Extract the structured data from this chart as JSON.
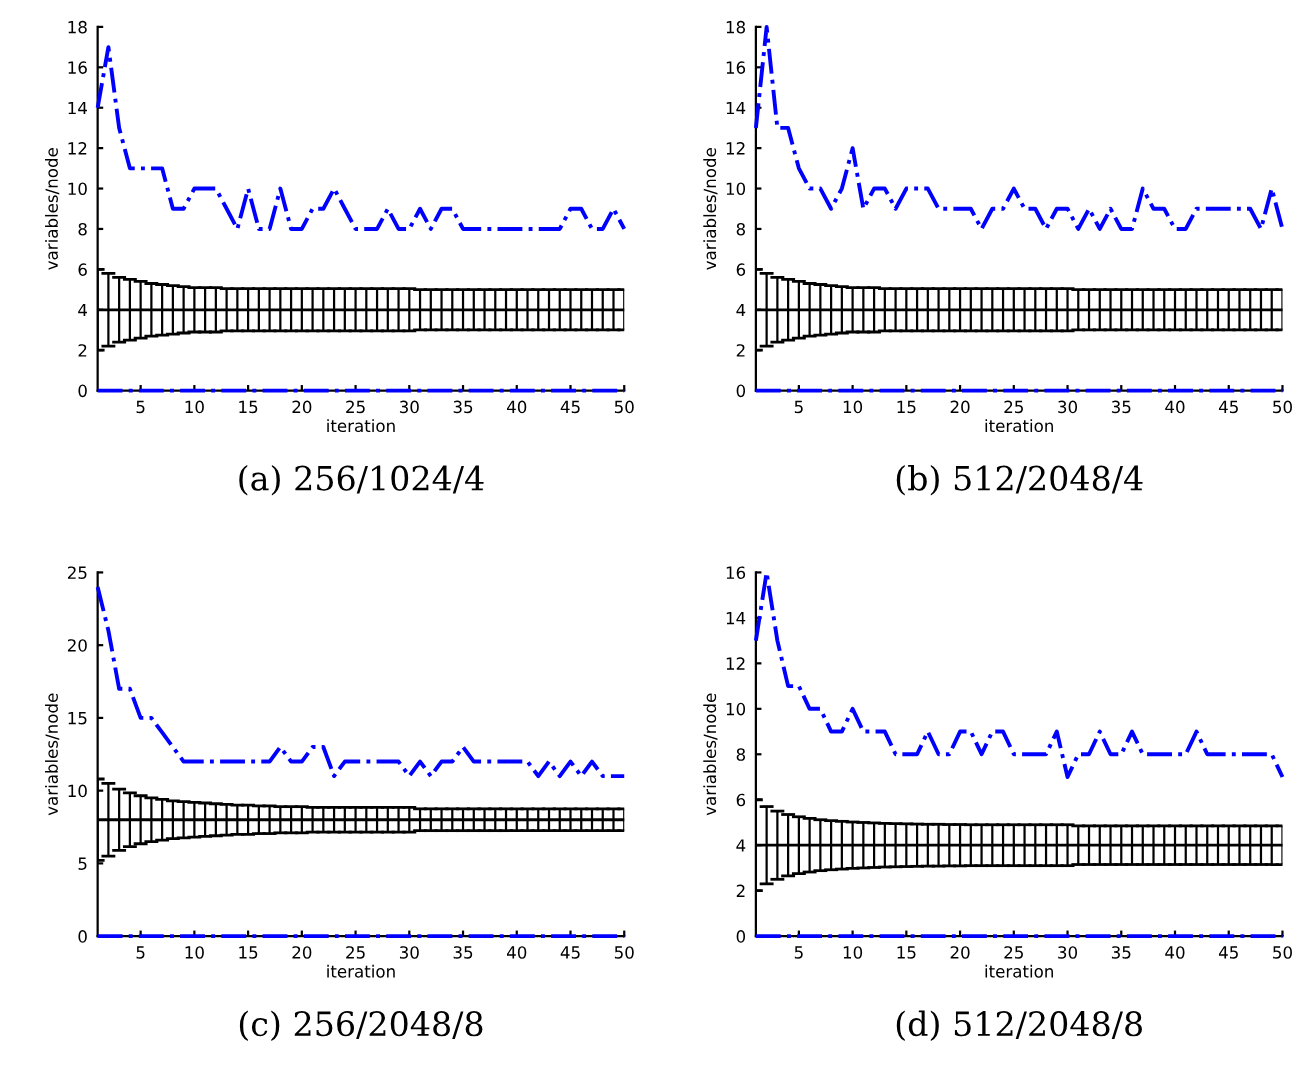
{
  "chart_data": [
    {
      "type": "line",
      "title": "(a) 256/1024/4",
      "xlabel": "iteration",
      "ylabel": "variables/node",
      "xlim": [
        1,
        50
      ],
      "xticks": [
        5,
        10,
        15,
        20,
        25,
        30,
        35,
        40,
        45,
        50
      ],
      "ylim": [
        0,
        18
      ],
      "yticks": [
        0,
        2,
        4,
        6,
        8,
        10,
        12,
        14,
        16,
        18
      ],
      "grid": false,
      "legend": false,
      "x": [
        1,
        2,
        3,
        4,
        5,
        6,
        7,
        8,
        9,
        10,
        11,
        12,
        13,
        14,
        15,
        16,
        17,
        18,
        19,
        20,
        21,
        22,
        23,
        24,
        25,
        26,
        27,
        28,
        29,
        30,
        31,
        32,
        33,
        34,
        35,
        36,
        37,
        38,
        39,
        40,
        41,
        42,
        43,
        44,
        45,
        46,
        47,
        48,
        49,
        50
      ],
      "series": [
        {
          "color": "#0000ff",
          "line_style": "dashed",
          "values": [
            14,
            17,
            13,
            11,
            11,
            11,
            11,
            9,
            9,
            10,
            10,
            10,
            9,
            8,
            10,
            8,
            8,
            10,
            8,
            8,
            9,
            9,
            10,
            9,
            8,
            8,
            8,
            9,
            8,
            8,
            9,
            8,
            9,
            9,
            8,
            8,
            8,
            8,
            8,
            8,
            8,
            8,
            8,
            8,
            9,
            9,
            8,
            8,
            9,
            8
          ]
        },
        {
          "color": "#0000ff",
          "line_style": "dashed",
          "values": [
            0,
            0,
            0,
            0,
            0,
            0,
            0,
            0,
            0,
            0,
            0,
            0,
            0,
            0,
            0,
            0,
            0,
            0,
            0,
            0,
            0,
            0,
            0,
            0,
            0,
            0,
            0,
            0,
            0,
            0,
            0,
            0,
            0,
            0,
            0,
            0,
            0,
            0,
            0,
            0,
            0,
            0,
            0,
            0,
            0,
            0,
            0,
            0,
            0,
            0
          ]
        },
        {
          "color": "#000000",
          "line_style": "solid",
          "values": [
            4,
            4,
            4,
            4,
            4,
            4,
            4,
            4,
            4,
            4,
            4,
            4,
            4,
            4,
            4,
            4,
            4,
            4,
            4,
            4,
            4,
            4,
            4,
            4,
            4,
            4,
            4,
            4,
            4,
            4,
            4,
            4,
            4,
            4,
            4,
            4,
            4,
            4,
            4,
            4,
            4,
            4,
            4,
            4,
            4,
            4,
            4,
            4,
            4,
            4
          ],
          "errors": [
            2,
            1.8,
            1.6,
            1.5,
            1.4,
            1.3,
            1.25,
            1.2,
            1.15,
            1.1,
            1.1,
            1.1,
            1.05,
            1.05,
            1.05,
            1.05,
            1.05,
            1.05,
            1.05,
            1.05,
            1.05,
            1.05,
            1.05,
            1.05,
            1.05,
            1.05,
            1.05,
            1.05,
            1.05,
            1.05,
            1,
            1,
            1,
            1,
            1,
            1,
            1,
            1,
            1,
            1,
            1,
            1,
            1,
            1,
            1,
            1,
            1,
            1,
            1,
            1
          ]
        }
      ]
    },
    {
      "type": "line",
      "title": "(b) 512/2048/4",
      "xlabel": "iteration",
      "ylabel": "variables/node",
      "xlim": [
        1,
        50
      ],
      "xticks": [
        5,
        10,
        15,
        20,
        25,
        30,
        35,
        40,
        45,
        50
      ],
      "ylim": [
        0,
        18
      ],
      "yticks": [
        0,
        2,
        4,
        6,
        8,
        10,
        12,
        14,
        16,
        18
      ],
      "grid": false,
      "legend": false,
      "x": [
        1,
        2,
        3,
        4,
        5,
        6,
        7,
        8,
        9,
        10,
        11,
        12,
        13,
        14,
        15,
        16,
        17,
        18,
        19,
        20,
        21,
        22,
        23,
        24,
        25,
        26,
        27,
        28,
        29,
        30,
        31,
        32,
        33,
        34,
        35,
        36,
        37,
        38,
        39,
        40,
        41,
        42,
        43,
        44,
        45,
        46,
        47,
        48,
        49,
        50
      ],
      "series": [
        {
          "color": "#0000ff",
          "line_style": "dashed",
          "values": [
            13,
            18,
            13,
            13,
            11,
            10,
            10,
            9,
            10,
            12,
            9,
            10,
            10,
            9,
            10,
            10,
            10,
            9,
            9,
            9,
            9,
            8,
            9,
            9,
            10,
            9,
            9,
            8,
            9,
            9,
            8,
            9,
            8,
            9,
            8,
            8,
            10,
            9,
            9,
            8,
            8,
            9,
            9,
            9,
            9,
            9,
            9,
            8,
            10,
            8
          ]
        },
        {
          "color": "#0000ff",
          "line_style": "dashed",
          "values": [
            0,
            0,
            0,
            0,
            0,
            0,
            0,
            0,
            0,
            0,
            0,
            0,
            0,
            0,
            0,
            0,
            0,
            0,
            0,
            0,
            0,
            0,
            0,
            0,
            0,
            0,
            0,
            0,
            0,
            0,
            0,
            0,
            0,
            0,
            0,
            0,
            0,
            0,
            0,
            0,
            0,
            0,
            0,
            0,
            0,
            0,
            0,
            0,
            0,
            0
          ]
        },
        {
          "color": "#000000",
          "line_style": "solid",
          "values": [
            4,
            4,
            4,
            4,
            4,
            4,
            4,
            4,
            4,
            4,
            4,
            4,
            4,
            4,
            4,
            4,
            4,
            4,
            4,
            4,
            4,
            4,
            4,
            4,
            4,
            4,
            4,
            4,
            4,
            4,
            4,
            4,
            4,
            4,
            4,
            4,
            4,
            4,
            4,
            4,
            4,
            4,
            4,
            4,
            4,
            4,
            4,
            4,
            4,
            4
          ],
          "errors": [
            2,
            1.8,
            1.6,
            1.5,
            1.4,
            1.3,
            1.25,
            1.2,
            1.15,
            1.1,
            1.1,
            1.1,
            1.05,
            1.05,
            1.05,
            1.05,
            1.05,
            1.05,
            1.05,
            1.05,
            1.05,
            1.05,
            1.05,
            1.05,
            1.05,
            1.05,
            1.05,
            1.05,
            1.05,
            1.05,
            1,
            1,
            1,
            1,
            1,
            1,
            1,
            1,
            1,
            1,
            1,
            1,
            1,
            1,
            1,
            1,
            1,
            1,
            1,
            1
          ]
        }
      ]
    },
    {
      "type": "line",
      "title": "(c) 256/2048/8",
      "xlabel": "iteration",
      "ylabel": "variables/node",
      "xlim": [
        1,
        50
      ],
      "xticks": [
        5,
        10,
        15,
        20,
        25,
        30,
        35,
        40,
        45,
        50
      ],
      "ylim": [
        0,
        25
      ],
      "yticks": [
        0,
        5,
        10,
        15,
        20,
        25
      ],
      "grid": false,
      "legend": false,
      "x": [
        1,
        2,
        3,
        4,
        5,
        6,
        7,
        8,
        9,
        10,
        11,
        12,
        13,
        14,
        15,
        16,
        17,
        18,
        19,
        20,
        21,
        22,
        23,
        24,
        25,
        26,
        27,
        28,
        29,
        30,
        31,
        32,
        33,
        34,
        35,
        36,
        37,
        38,
        39,
        40,
        41,
        42,
        43,
        44,
        45,
        46,
        47,
        48,
        49,
        50
      ],
      "series": [
        {
          "color": "#0000ff",
          "line_style": "dashed",
          "values": [
            24,
            21,
            17,
            17,
            15,
            15,
            14,
            13,
            12,
            12,
            12,
            12,
            12,
            12,
            12,
            12,
            12,
            13,
            12,
            12,
            13,
            13,
            11,
            12,
            12,
            12,
            12,
            12,
            12,
            11,
            12,
            11,
            12,
            12,
            13,
            12,
            12,
            12,
            12,
            12,
            12,
            11,
            12,
            11,
            12,
            11,
            12,
            11,
            11,
            11
          ]
        },
        {
          "color": "#0000ff",
          "line_style": "dashed",
          "values": [
            0,
            0,
            0,
            0,
            0,
            0,
            0,
            0,
            0,
            0,
            0,
            0,
            0,
            0,
            0,
            0,
            0,
            0,
            0,
            0,
            0,
            0,
            0,
            0,
            0,
            0,
            0,
            0,
            0,
            0,
            0,
            0,
            0,
            0,
            0,
            0,
            0,
            0,
            0,
            0,
            0,
            0,
            0,
            0,
            0,
            0,
            0,
            0,
            0,
            0
          ]
        },
        {
          "color": "#000000",
          "line_style": "solid",
          "values": [
            8,
            8,
            8,
            8,
            8,
            8,
            8,
            8,
            8,
            8,
            8,
            8,
            8,
            8,
            8,
            8,
            8,
            8,
            8,
            8,
            8,
            8,
            8,
            8,
            8,
            8,
            8,
            8,
            8,
            8,
            8,
            8,
            8,
            8,
            8,
            8,
            8,
            8,
            8,
            8,
            8,
            8,
            8,
            8,
            8,
            8,
            8,
            8,
            8,
            8
          ],
          "errors": [
            2.8,
            2.5,
            2.1,
            1.85,
            1.65,
            1.5,
            1.4,
            1.3,
            1.25,
            1.2,
            1.15,
            1.1,
            1.05,
            1,
            1,
            0.95,
            0.95,
            0.9,
            0.9,
            0.9,
            0.85,
            0.85,
            0.85,
            0.85,
            0.85,
            0.85,
            0.85,
            0.85,
            0.85,
            0.85,
            0.75,
            0.75,
            0.75,
            0.75,
            0.75,
            0.75,
            0.75,
            0.75,
            0.75,
            0.75,
            0.75,
            0.75,
            0.75,
            0.75,
            0.75,
            0.75,
            0.75,
            0.75,
            0.75,
            0.75
          ]
        }
      ]
    },
    {
      "type": "line",
      "title": "(d) 512/2048/8",
      "xlabel": "iteration",
      "ylabel": "variables/node",
      "xlim": [
        1,
        50
      ],
      "xticks": [
        5,
        10,
        15,
        20,
        25,
        30,
        35,
        40,
        45,
        50
      ],
      "ylim": [
        0,
        16
      ],
      "yticks": [
        0,
        2,
        4,
        6,
        8,
        10,
        12,
        14,
        16
      ],
      "grid": false,
      "legend": false,
      "x": [
        1,
        2,
        3,
        4,
        5,
        6,
        7,
        8,
        9,
        10,
        11,
        12,
        13,
        14,
        15,
        16,
        17,
        18,
        19,
        20,
        21,
        22,
        23,
        24,
        25,
        26,
        27,
        28,
        29,
        30,
        31,
        32,
        33,
        34,
        35,
        36,
        37,
        38,
        39,
        40,
        41,
        42,
        43,
        44,
        45,
        46,
        47,
        48,
        49,
        50
      ],
      "series": [
        {
          "color": "#0000ff",
          "line_style": "dashed",
          "values": [
            13,
            16,
            13,
            11,
            11,
            10,
            10,
            9,
            9,
            10,
            9,
            9,
            9,
            8,
            8,
            8,
            9,
            8,
            8,
            9,
            9,
            8,
            9,
            9,
            8,
            8,
            8,
            8,
            9,
            7,
            8,
            8,
            9,
            8,
            8,
            9,
            8,
            8,
            8,
            8,
            8,
            9,
            8,
            8,
            8,
            8,
            8,
            8,
            8,
            7
          ]
        },
        {
          "color": "#0000ff",
          "line_style": "dashed",
          "values": [
            0,
            0,
            0,
            0,
            0,
            0,
            0,
            0,
            0,
            0,
            0,
            0,
            0,
            0,
            0,
            0,
            0,
            0,
            0,
            0,
            0,
            0,
            0,
            0,
            0,
            0,
            0,
            0,
            0,
            0,
            0,
            0,
            0,
            0,
            0,
            0,
            0,
            0,
            0,
            0,
            0,
            0,
            0,
            0,
            0,
            0,
            0,
            0,
            0,
            0
          ]
        },
        {
          "color": "#000000",
          "line_style": "solid",
          "values": [
            4,
            4,
            4,
            4,
            4,
            4,
            4,
            4,
            4,
            4,
            4,
            4,
            4,
            4,
            4,
            4,
            4,
            4,
            4,
            4,
            4,
            4,
            4,
            4,
            4,
            4,
            4,
            4,
            4,
            4,
            4,
            4,
            4,
            4,
            4,
            4,
            4,
            4,
            4,
            4,
            4,
            4,
            4,
            4,
            4,
            4,
            4,
            4,
            4,
            4
          ],
          "errors": [
            2,
            1.7,
            1.5,
            1.35,
            1.25,
            1.18,
            1.12,
            1.08,
            1.05,
            1.02,
            1,
            0.98,
            0.96,
            0.95,
            0.94,
            0.93,
            0.92,
            0.92,
            0.91,
            0.91,
            0.9,
            0.9,
            0.9,
            0.9,
            0.9,
            0.9,
            0.9,
            0.9,
            0.9,
            0.9,
            0.85,
            0.85,
            0.85,
            0.85,
            0.85,
            0.85,
            0.85,
            0.85,
            0.85,
            0.85,
            0.85,
            0.85,
            0.85,
            0.85,
            0.85,
            0.85,
            0.85,
            0.85,
            0.85,
            0.85
          ]
        }
      ]
    }
  ]
}
